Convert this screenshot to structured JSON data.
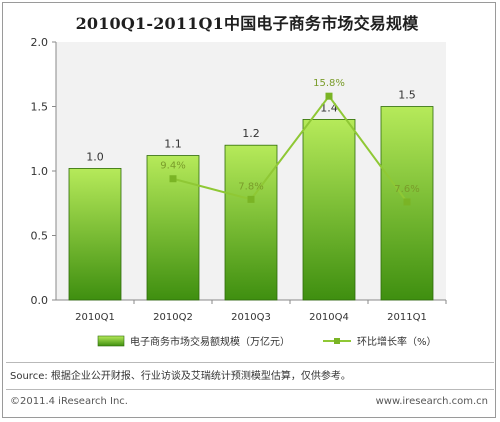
{
  "chart_data": {
    "type": "bar+line",
    "title": "2010Q1-2011Q1中国电子商务市场交易规模",
    "categories": [
      "2010Q1",
      "2010Q2",
      "2010Q3",
      "2010Q4",
      "2011Q1"
    ],
    "series": [
      {
        "name": "电子商务市场交易额规模（万亿元）",
        "type": "bar",
        "values": [
          1.0,
          1.1,
          1.2,
          1.4,
          1.5
        ],
        "plotted_values": [
          1.02,
          1.12,
          1.2,
          1.4,
          1.5
        ],
        "labels": [
          "1.0",
          "1.1",
          "1.2",
          "1.4",
          "1.5"
        ]
      },
      {
        "name": "环比增长率（%）",
        "type": "line",
        "values": [
          null,
          9.4,
          7.8,
          15.8,
          7.6
        ],
        "labels": [
          "",
          "9.4%",
          "7.8%",
          "15.8%",
          "7.6%"
        ]
      }
    ],
    "ylim": [
      0,
      2.0
    ],
    "yticks": [
      "0.0",
      "0.5",
      "1.0",
      "1.5",
      "2.0"
    ],
    "grid": false,
    "legend_position": "bottom",
    "colors": {
      "bar_top": "#b6ea5a",
      "bar_bottom": "#3f8f10",
      "bar_stroke": "#2e6b0a",
      "line": "#8fc835",
      "marker": "#7ab425",
      "background": "#f2f2f2",
      "bar_label": "#333333",
      "line_label": "#7a9c2a"
    }
  },
  "footer": {
    "source": "Source: 根据企业公开财报、行业访谈及艾瑞统计预测模型估算，仅供参考。",
    "copyright": "©2011.4 iResearch Inc.",
    "website": "www.iresearch.com.cn"
  }
}
